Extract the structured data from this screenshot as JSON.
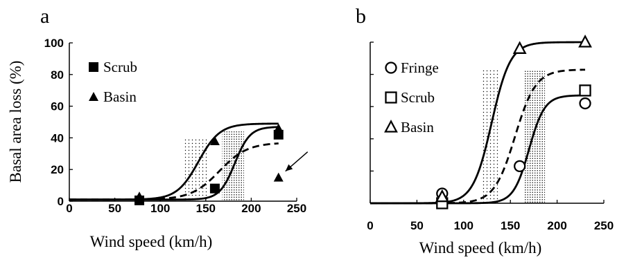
{
  "figure": {
    "colors": {
      "ink": "#000000",
      "background": "#ffffff",
      "band_dots": "#000000"
    }
  },
  "chart_data": [
    {
      "type": "scatter",
      "panel": "a",
      "xlabel": "Wind speed (km/h)",
      "ylabel": "Basal area loss (%)",
      "xlim": [
        0,
        250
      ],
      "ylim": [
        0,
        100
      ],
      "xticks": [
        "0",
        "50",
        "100",
        "150",
        "200",
        "250"
      ],
      "yticks": [
        "0",
        "20",
        "40",
        "60",
        "80",
        "100"
      ],
      "legend_position": "top-left",
      "legend": [
        {
          "label": "Scrub",
          "marker": "filled-square"
        },
        {
          "label": "Basin",
          "marker": "filled-triangle"
        }
      ],
      "series": [
        {
          "name": "Scrub",
          "marker": "filled-square",
          "points": [
            [
              77,
              0.5
            ],
            [
              160,
              8
            ],
            [
              230,
              42
            ]
          ]
        },
        {
          "name": "Basin",
          "marker": "filled-triangle",
          "points": [
            [
              77,
              3
            ],
            [
              160,
              38
            ],
            [
              230,
              46
            ],
            [
              230,
              15
            ]
          ]
        }
      ],
      "curves": [
        {
          "style": "solid",
          "L": 48,
          "k": 0.085,
          "x0": 142,
          "base": 1
        },
        {
          "style": "solid",
          "L": 46,
          "k": 0.12,
          "x0": 182,
          "base": 1
        },
        {
          "style": "dashed",
          "L": 36,
          "k": 0.065,
          "x0": 165,
          "base": 1
        }
      ],
      "shaded_bands": [
        {
          "x": [
            127,
            153
          ],
          "y": [
            0,
            40
          ],
          "density": "light"
        },
        {
          "x": [
            168,
            192
          ],
          "y": [
            0,
            45
          ],
          "density": "dense"
        }
      ],
      "annotations": [
        {
          "type": "arrow",
          "target": [
            230,
            15
          ],
          "label": ""
        }
      ]
    },
    {
      "type": "scatter",
      "panel": "b",
      "xlabel": "Wind speed (km/h)",
      "ylabel": "",
      "xlim": [
        0,
        250
      ],
      "ylim": [
        0,
        100
      ],
      "xticks": [
        "0",
        "50",
        "100",
        "150",
        "200",
        "250"
      ],
      "yticks": [],
      "legend_position": "top-left",
      "legend": [
        {
          "label": "Fringe",
          "marker": "open-circle"
        },
        {
          "label": "Scrub",
          "marker": "open-square"
        },
        {
          "label": "Basin",
          "marker": "open-triangle"
        }
      ],
      "series": [
        {
          "name": "Fringe",
          "marker": "open-circle",
          "points": [
            [
              77,
              6
            ],
            [
              160,
              23
            ],
            [
              230,
              62
            ]
          ]
        },
        {
          "name": "Scrub",
          "marker": "open-square",
          "points": [
            [
              77,
              0
            ],
            [
              230,
              70
            ]
          ]
        },
        {
          "name": "Basin",
          "marker": "open-triangle",
          "points": [
            [
              77,
              4
            ],
            [
              160,
              96
            ],
            [
              230,
              100
            ]
          ]
        }
      ],
      "curves": [
        {
          "style": "solid",
          "L": 100,
          "k": 0.1,
          "x0": 130,
          "base": 0
        },
        {
          "style": "dashed",
          "L": 83,
          "k": 0.09,
          "x0": 155,
          "base": 0
        },
        {
          "style": "solid",
          "L": 67,
          "k": 0.12,
          "x0": 170,
          "base": 0
        }
      ],
      "shaded_bands": [
        {
          "x": [
            120,
            137
          ],
          "y": [
            0,
            83
          ],
          "density": "light"
        },
        {
          "x": [
            165,
            187
          ],
          "y": [
            0,
            83
          ],
          "density": "dense"
        }
      ],
      "annotations": []
    }
  ]
}
